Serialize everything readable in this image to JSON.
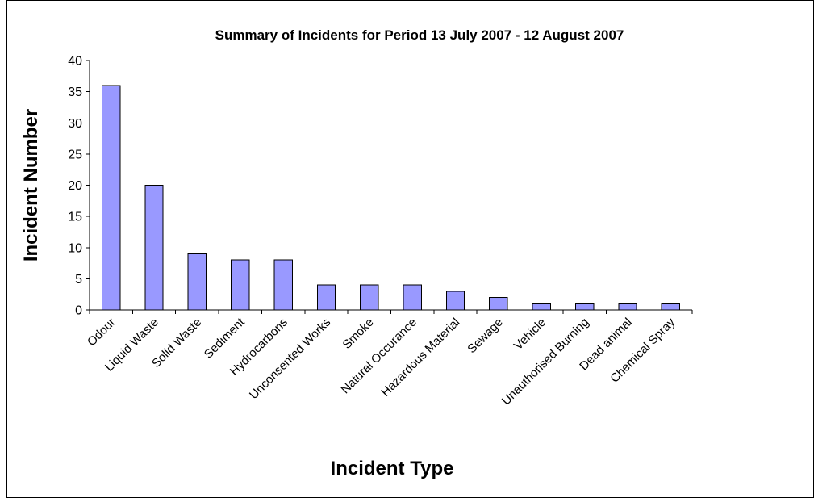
{
  "chart_data": {
    "type": "bar",
    "title": "Summary of Incidents for Period 13 July 2007 - 12 August 2007",
    "xlabel": "Incident Type",
    "ylabel": "Incident Number",
    "categories": [
      "Odour",
      "Liquid Waste",
      "Solid Waste",
      "Sediment",
      "Hydrocarbons",
      "Unconsented Works",
      "Smoke",
      "Natural Occurance",
      "Hazardous Material",
      "Sewage",
      "Vehicle",
      "Unauthorised Burning",
      "Dead animal",
      "Chemical Spray"
    ],
    "values": [
      36,
      20,
      9,
      8,
      8,
      4,
      4,
      4,
      3,
      2,
      1,
      1,
      1,
      1
    ],
    "ylim": [
      0,
      40
    ],
    "yticks": [
      0,
      5,
      10,
      15,
      20,
      25,
      30,
      35,
      40
    ],
    "grid": false,
    "legend": "none",
    "bar_color": "#9999ff",
    "bar_edge_color": "#000000"
  }
}
